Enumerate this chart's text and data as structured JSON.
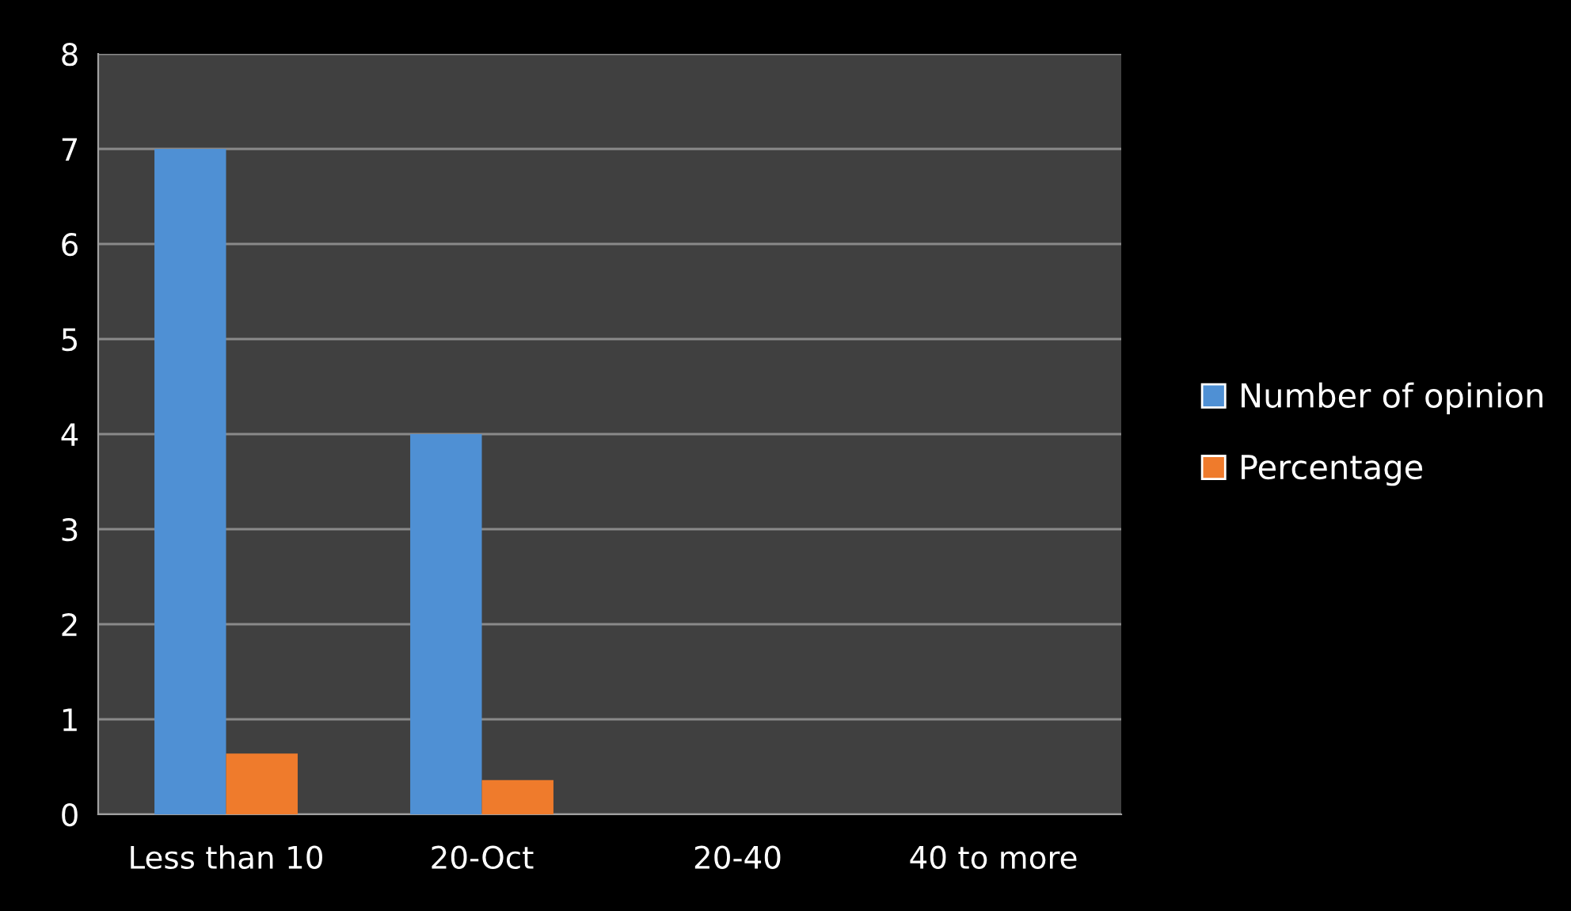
{
  "chart_data": {
    "type": "bar",
    "categories": [
      "Less than 10",
      "20-Oct",
      "20-40",
      "40 to more"
    ],
    "series": [
      {
        "name": "Number of opinion",
        "color": "#4f90d4",
        "values": [
          7,
          4,
          null,
          null
        ]
      },
      {
        "name": "Percentage",
        "color": "#ef7b2c",
        "values": [
          0.64,
          0.36,
          null,
          null
        ]
      }
    ],
    "ylim": [
      0,
      8
    ],
    "yticks": [
      0,
      1,
      2,
      3,
      4,
      5,
      6,
      7,
      8
    ],
    "grid": "y",
    "legend": "right"
  }
}
